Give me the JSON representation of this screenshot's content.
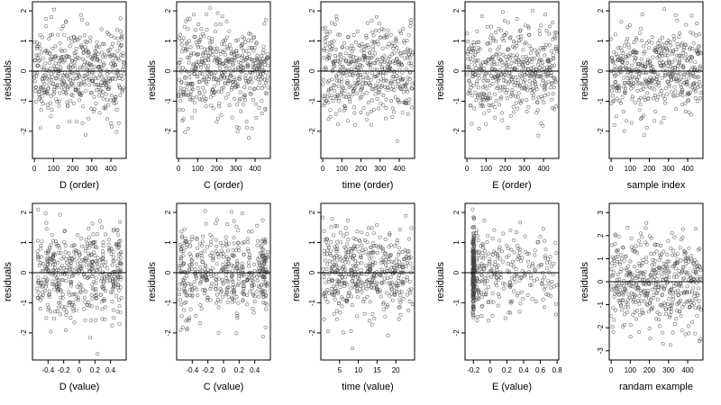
{
  "chart_data": [
    {
      "type": "scatter",
      "xlabel": "D (order)",
      "ylabel": "residuals",
      "xlim": [
        -10,
        480
      ],
      "ylim": [
        -2.9,
        2.3
      ],
      "xticks": [
        0,
        100,
        200,
        300,
        400
      ],
      "yticks": [
        -2,
        -1,
        0,
        1,
        2
      ],
      "hline": 0,
      "pattern": {
        "kind": "index",
        "n": 470,
        "sd": 0.75,
        "seed": 11
      }
    },
    {
      "type": "scatter",
      "xlabel": "C (order)",
      "ylabel": "residuals",
      "xlim": [
        -10,
        480
      ],
      "ylim": [
        -2.9,
        2.3
      ],
      "xticks": [
        0,
        100,
        200,
        300,
        400
      ],
      "yticks": [
        -2,
        -1,
        0,
        1,
        2
      ],
      "hline": 0,
      "pattern": {
        "kind": "index",
        "n": 470,
        "sd": 0.75,
        "seed": 23
      }
    },
    {
      "type": "scatter",
      "xlabel": "time (order)",
      "ylabel": "residuals",
      "xlim": [
        -10,
        480
      ],
      "ylim": [
        -2.9,
        2.3
      ],
      "xticks": [
        0,
        100,
        200,
        300,
        400
      ],
      "yticks": [
        -2,
        -1,
        0,
        1,
        2
      ],
      "hline": 0,
      "pattern": {
        "kind": "index",
        "n": 470,
        "sd": 0.75,
        "seed": 37
      }
    },
    {
      "type": "scatter",
      "xlabel": "E (order)",
      "ylabel": "residuals",
      "xlim": [
        -10,
        480
      ],
      "ylim": [
        -2.9,
        2.3
      ],
      "xticks": [
        0,
        100,
        200,
        300,
        400
      ],
      "yticks": [
        -2,
        -1,
        0,
        1,
        2
      ],
      "hline": 0,
      "pattern": {
        "kind": "index",
        "n": 470,
        "sd": 0.75,
        "seed": 41
      }
    },
    {
      "type": "scatter",
      "xlabel": "sample index",
      "ylabel": "residuals",
      "xlim": [
        -10,
        480
      ],
      "ylim": [
        -2.9,
        2.3
      ],
      "xticks": [
        0,
        100,
        200,
        300,
        400
      ],
      "yticks": [
        -2,
        -1,
        0,
        1,
        2
      ],
      "hline": 0,
      "pattern": {
        "kind": "index",
        "n": 470,
        "sd": 0.75,
        "seed": 53
      }
    },
    {
      "type": "scatter",
      "xlabel": "D (value)",
      "ylabel": "residuals",
      "xlim": [
        -0.6,
        0.6
      ],
      "ylim": [
        -2.9,
        2.3
      ],
      "xticks": [
        -0.4,
        -0.2,
        0.0,
        0.2,
        0.4
      ],
      "yticks": [
        -2,
        -1,
        0,
        1,
        2
      ],
      "hline": 0,
      "pattern": {
        "kind": "grouped",
        "n": 470,
        "sd": 0.75,
        "seed": 61,
        "groups": [
          -0.52,
          -0.48,
          -0.42,
          -0.38,
          -0.33,
          -0.28,
          -0.23,
          -0.18,
          -0.12,
          -0.08,
          -0.03,
          0.02,
          0.07,
          0.12,
          0.17,
          0.22,
          0.28,
          0.32,
          0.38,
          0.43,
          0.48,
          0.52
        ]
      }
    },
    {
      "type": "scatter",
      "xlabel": "C (value)",
      "ylabel": "residuals",
      "xlim": [
        -0.6,
        0.6
      ],
      "ylim": [
        -2.9,
        2.3
      ],
      "xticks": [
        -0.4,
        -0.2,
        0.0,
        0.2,
        0.4
      ],
      "yticks": [
        -2,
        -1,
        0,
        1,
        2
      ],
      "hline": 0,
      "pattern": {
        "kind": "grouped",
        "n": 470,
        "sd": 0.75,
        "seed": 71,
        "groups": [
          -0.55,
          -0.52,
          -0.48,
          -0.42,
          -0.35,
          -0.28,
          -0.22,
          -0.15,
          -0.08,
          -0.02,
          0.05,
          0.12,
          0.18,
          0.25,
          0.32,
          0.38,
          0.45,
          0.5,
          0.52,
          0.55
        ]
      }
    },
    {
      "type": "scatter",
      "xlabel": "time (value)",
      "ylabel": "residuals",
      "xlim": [
        0,
        25
      ],
      "ylim": [
        -2.9,
        2.3
      ],
      "xticks": [
        5,
        10,
        15,
        20
      ],
      "yticks": [
        -2,
        -1,
        0,
        1,
        2
      ],
      "hline": 0,
      "pattern": {
        "kind": "grouped",
        "n": 470,
        "sd": 0.75,
        "seed": 83,
        "groups": [
          1,
          2,
          3,
          4,
          5,
          6,
          7,
          8,
          9,
          10,
          11,
          12,
          13,
          14,
          15,
          16,
          17,
          18,
          19,
          20,
          21,
          22,
          23,
          24
        ]
      }
    },
    {
      "type": "scatter",
      "xlabel": "E (value)",
      "ylabel": "residuals",
      "xlim": [
        -0.3,
        0.82
      ],
      "ylim": [
        -2.9,
        2.3
      ],
      "xticks": [
        -0.2,
        0.0,
        0.2,
        0.4,
        0.6,
        0.8
      ],
      "yticks": [
        -2,
        -1,
        0,
        1,
        2
      ],
      "hline": 0,
      "pattern": {
        "kind": "skewed",
        "n": 470,
        "sd": 0.75,
        "seed": 97,
        "base": -0.2
      }
    },
    {
      "type": "scatter",
      "xlabel": "randam example",
      "ylabel": "residuals",
      "xlim": [
        -10,
        480
      ],
      "ylim": [
        -3.4,
        3.4
      ],
      "xticks": [
        0,
        100,
        200,
        300,
        400
      ],
      "yticks": [
        -3,
        -2,
        -1,
        0,
        1,
        2,
        3
      ],
      "hline": 0,
      "pattern": {
        "kind": "index",
        "n": 470,
        "sd": 1.0,
        "seed": 101
      }
    }
  ]
}
